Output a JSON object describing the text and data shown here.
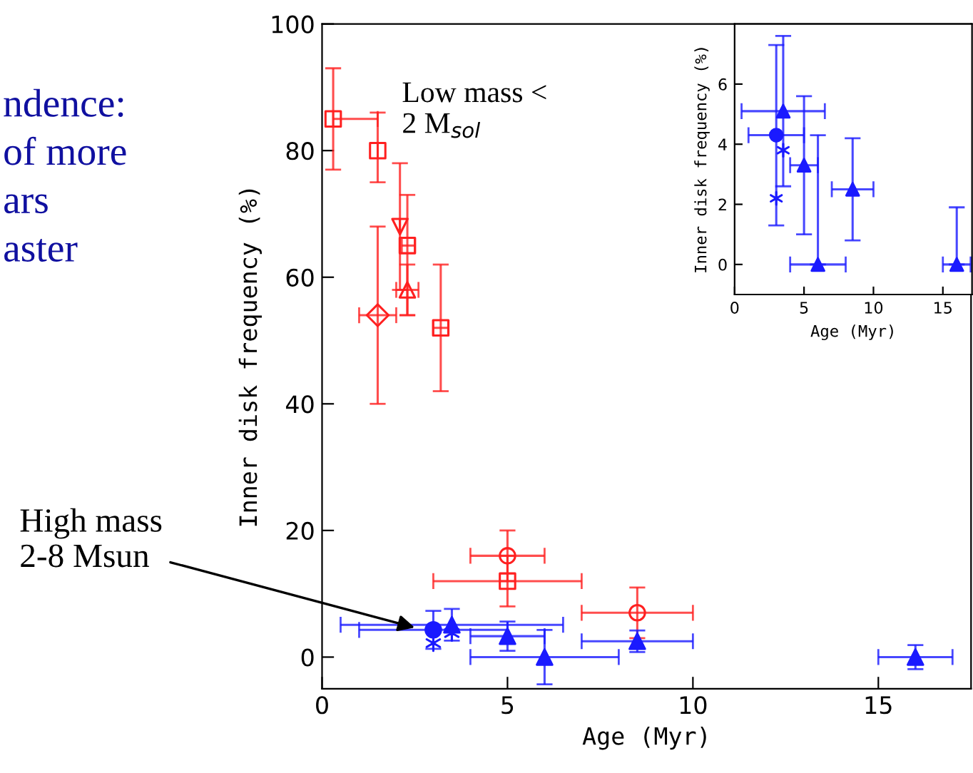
{
  "chart_data": [
    {
      "type": "scatter",
      "xlabel": "Age (Myr)",
      "ylabel": "Inner disk frequency (%)",
      "xlim": [
        0,
        17.5
      ],
      "ylim": [
        -5,
        100
      ],
      "xticks": [
        0,
        5,
        10,
        15
      ],
      "yticks": [
        0,
        20,
        40,
        60,
        80,
        100
      ],
      "annotations": [
        "Low mass <\n2 M$_{sol}$",
        {
          "text": "High mass\n2-8 Msun",
          "x": 2.6,
          "y": 4.5
        },
        "ndence:\nof more\nars\naster"
      ],
      "series": [
        {
          "color": "#ff2020",
          "marker": "square",
          "x": [
            0.3,
            1.5,
            2.3,
            3.2,
            5
          ],
          "values": [
            85,
            80,
            65,
            52,
            12
          ],
          "xerrors": [
            [
              0.3,
              1.5
            ],
            null,
            [
              2.15,
              2.5
            ],
            [
              3.0,
              3.4
            ],
            [
              3,
              7
            ]
          ],
          "errors": [
            [
              77,
              93
            ],
            [
              75,
              86
            ],
            [
              54,
              73
            ],
            [
              42,
              62
            ],
            [
              8,
              16
            ]
          ]
        },
        {
          "color": "#ff2020",
          "marker": "triangle_down",
          "x": [
            2.1
          ],
          "values": [
            68
          ],
          "xerrors": [
            null
          ],
          "errors": [
            [
              58,
              78
            ]
          ]
        },
        {
          "color": "#ff2020",
          "marker": "triangle",
          "x": [
            2.3
          ],
          "values": [
            58
          ],
          "xerrors": [
            [
              2.0,
              2.6
            ]
          ],
          "errors": [
            [
              54,
              62
            ]
          ]
        },
        {
          "color": "#ff2020",
          "marker": "diamond",
          "x": [
            1.5
          ],
          "values": [
            54
          ],
          "xerrors": [
            [
              1.0,
              2.0
            ]
          ],
          "errors": [
            [
              40,
              68
            ]
          ]
        },
        {
          "color": "#ff2020",
          "marker": "circle",
          "x": [
            5,
            8.5
          ],
          "values": [
            16,
            7
          ],
          "xerrors": [
            [
              4,
              6
            ],
            [
              7,
              10
            ]
          ],
          "errors": [
            [
              12,
              20
            ],
            [
              3,
              11
            ]
          ]
        },
        {
          "color": "#1a1aff",
          "marker": "circle",
          "x": [
            3
          ],
          "values": [
            4.3
          ],
          "xerrors": [
            [
              1,
              5
            ]
          ],
          "errors": [
            [
              1.3,
              7.3
            ]
          ]
        },
        {
          "color": "#1a1aff",
          "marker": "triangle",
          "x": [
            3.5,
            5,
            6,
            8.5,
            16
          ],
          "values": [
            5.1,
            3.3,
            0,
            2.5,
            0
          ],
          "xerrors": [
            [
              0.5,
              6.5
            ],
            [
              4,
              6
            ],
            [
              4,
              8
            ],
            [
              7,
              10
            ],
            [
              15,
              17
            ]
          ],
          "errors": [
            [
              2.6,
              7.6
            ],
            [
              1,
              5.6
            ],
            [
              -4.3,
              4.3
            ],
            [
              0.8,
              4.2
            ],
            [
              -1.9,
              1.9
            ]
          ]
        },
        {
          "color": "#1a1aff",
          "marker": "cross",
          "x": [
            3,
            3.5
          ],
          "values": [
            2.2,
            3.8
          ]
        }
      ]
    },
    {
      "type": "scatter",
      "xlabel": "Age (Myr)",
      "ylabel": "Inner disk frequency (%)",
      "xlim": [
        0,
        17.1
      ],
      "ylim": [
        -1,
        8
      ],
      "xticks": [
        0,
        5,
        10,
        15
      ],
      "yticks": [
        0,
        2,
        4,
        6
      ],
      "series": [
        {
          "color": "#1a1aff",
          "marker": "circle",
          "x": [
            3
          ],
          "values": [
            4.3
          ],
          "xerrors": [
            [
              1,
              5
            ]
          ],
          "errors": [
            [
              1.3,
              7.3
            ]
          ]
        },
        {
          "color": "#1a1aff",
          "marker": "triangle",
          "x": [
            3.5,
            5,
            6,
            8.5,
            16
          ],
          "values": [
            5.1,
            3.3,
            0,
            2.5,
            0
          ],
          "xerrors": [
            [
              0.5,
              6.5
            ],
            [
              4,
              6
            ],
            [
              4,
              8
            ],
            [
              7,
              10
            ],
            [
              15,
              17
            ]
          ],
          "errors": [
            [
              2.6,
              7.6
            ],
            [
              1,
              5.6
            ],
            [
              0,
              4.3
            ],
            [
              0.8,
              4.2
            ],
            [
              0,
              1.9
            ]
          ]
        },
        {
          "color": "#1a1aff",
          "marker": "cross",
          "x": [
            3,
            3.5
          ],
          "values": [
            2.2,
            3.8
          ]
        }
      ]
    }
  ]
}
